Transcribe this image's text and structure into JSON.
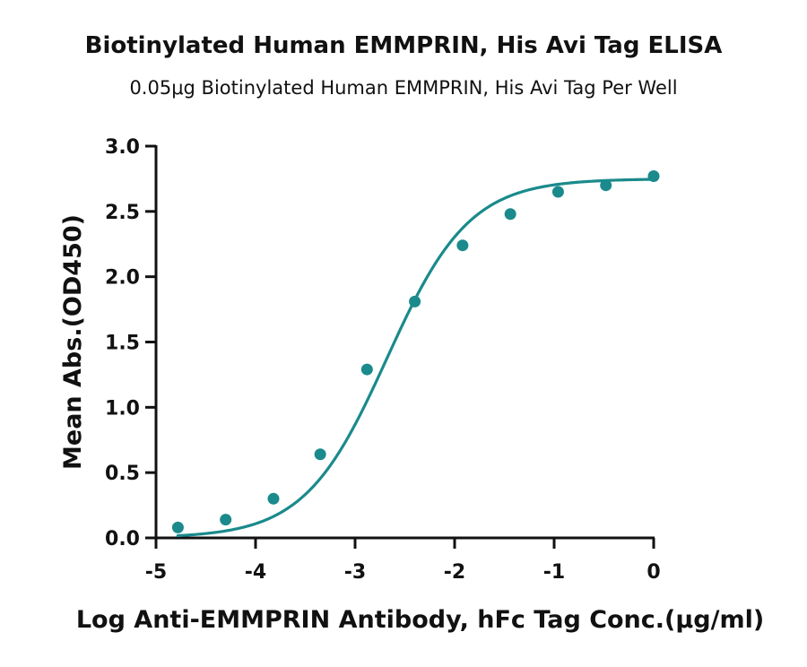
{
  "chart_data": {
    "type": "scatter",
    "title": "Biotinylated Human EMMPRIN, His Avi Tag ELISA",
    "subtitle": "0.05μg Biotinylated Human EMMPRIN, His Avi Tag Per Well",
    "xlabel": "Log Anti-EMMPRIN Antibody, hFc Tag Conc.(μg/ml)",
    "ylabel": "Mean Abs.(OD450)",
    "xlim": [
      -5,
      0
    ],
    "ylim": [
      0,
      3.0
    ],
    "x_ticks": [
      -5,
      -4,
      -3,
      -2,
      -1,
      0
    ],
    "x_tick_labels": [
      "-5",
      "-4",
      "-3",
      "-2",
      "-1",
      "0"
    ],
    "y_ticks": [
      0,
      0.5,
      1.0,
      1.5,
      2.0,
      2.5,
      3.0
    ],
    "y_tick_labels": [
      "0.0",
      "0.5",
      "1.0",
      "1.5",
      "2.0",
      "2.5",
      "3.0"
    ],
    "grid": false,
    "color": "#1a8a8c",
    "series": [
      {
        "points": [
          {
            "x": -4.78,
            "y": 0.08
          },
          {
            "x": -4.3,
            "y": 0.14
          },
          {
            "x": -3.82,
            "y": 0.3
          },
          {
            "x": -3.35,
            "y": 0.64
          },
          {
            "x": -2.88,
            "y": 1.29
          },
          {
            "x": -2.4,
            "y": 1.81
          },
          {
            "x": -1.92,
            "y": 2.24
          },
          {
            "x": -1.44,
            "y": 2.48
          },
          {
            "x": -0.96,
            "y": 2.65
          },
          {
            "x": -0.48,
            "y": 2.7
          },
          {
            "x": 0.0,
            "y": 2.77
          }
        ],
        "fit": {
          "model": "4PL",
          "bottom": 0.0,
          "top": 2.75,
          "log_ec50": -2.68,
          "hill": 1.05
        }
      }
    ]
  }
}
